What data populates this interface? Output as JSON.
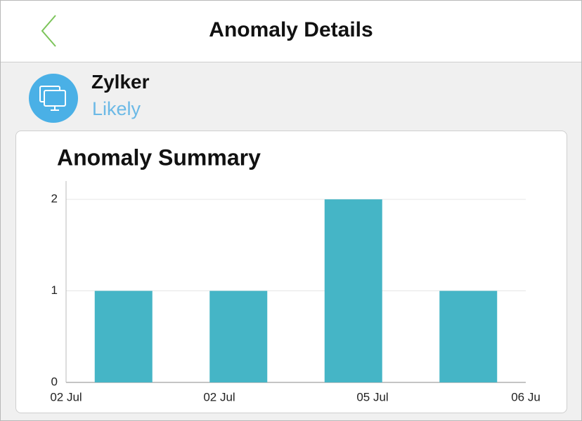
{
  "header": {
    "title": "Anomaly Details"
  },
  "profile": {
    "name": "Zylker",
    "status": "Likely"
  },
  "chart_data": {
    "type": "bar",
    "title": "Anomaly Summary",
    "categories": [
      null,
      null,
      null,
      null
    ],
    "values": [
      1,
      1,
      2,
      1
    ],
    "color": "#45b5c6",
    "x_labels": [
      "02 Jul",
      "02 Jul",
      "05 Jul",
      "06 Ju"
    ],
    "ylim": [
      0,
      2.2
    ],
    "yticks": [
      0,
      1,
      2
    ],
    "grid": true
  }
}
